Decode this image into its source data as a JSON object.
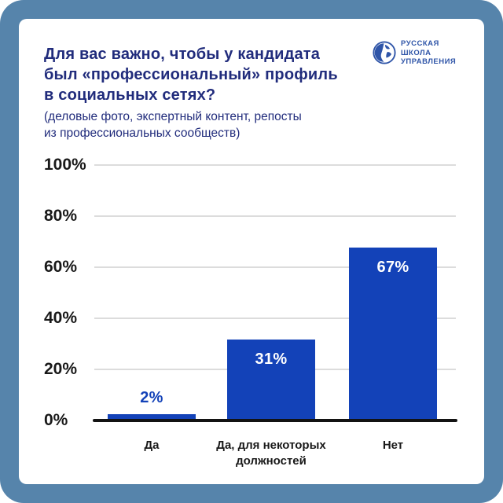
{
  "frame": {
    "color": "#5684ab"
  },
  "header": {
    "title": "Для вас важно, чтобы у кандидата\nбыл «профессиональный» профиль\nв социальных сетях?",
    "subtitle": "(деловые фото, экспертный контент, репосты\nиз профессиональных сообществ)",
    "title_color": "#212c7c"
  },
  "logo": {
    "lines": [
      "РУССКАЯ",
      "ШКОЛА",
      "УПРАВЛЕНИЯ"
    ],
    "color": "#2f55a8",
    "icon": "globe-icon"
  },
  "chart_data": {
    "type": "bar",
    "title": "Для вас важно, чтобы у кандидата был «профессиональный» профиль в социальных сетях?",
    "subtitle": "(деловые фото, экспертный контент, репосты из профессиональных сообществ)",
    "categories": [
      "Да",
      "Да, для некоторых\nдолжностей",
      "Нет"
    ],
    "values": [
      2,
      31,
      67
    ],
    "value_labels": [
      "2%",
      "31%",
      "67%"
    ],
    "xlabel": "",
    "ylabel": "",
    "ylim": [
      0,
      100
    ],
    "yticks": [
      0,
      20,
      40,
      60,
      80,
      100
    ],
    "ytick_labels": [
      "0%",
      "20%",
      "40%",
      "60%",
      "80%",
      "100%"
    ],
    "grid": true,
    "legend": "none",
    "bar_color": "#1342b8",
    "value_label_inside_color": "#ffffff",
    "value_label_outside_color": "#1342b8",
    "gridline_color": "#dcdcdc",
    "axis_color": "#131313"
  }
}
